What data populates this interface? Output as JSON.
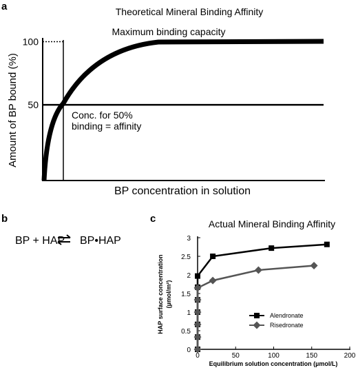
{
  "panel_a": {
    "label": "a",
    "title": "Theoretical Mineral Binding Affinity",
    "y_label": "Amount of BP bound (%)",
    "x_label": "BP concentration in solution",
    "ylim": [
      -10,
      103
    ],
    "yticks": [
      50,
      100
    ],
    "annotation_max": "Maximum binding capacity",
    "annotation_half": [
      "Conc. for 50%",
      "binding = affinity"
    ]
  },
  "panel_b": {
    "label": "b",
    "reactants": "BP + HAP",
    "product": "BP•HAP"
  },
  "chart_data": {
    "type": "line",
    "label": "c",
    "title": "Actual Mineral Binding Affinity",
    "x_label": "Equilibrium solution concentration (µmol/L)",
    "y_label": [
      "HAP surface concentration",
      "(µmol/m²)"
    ],
    "xlim": [
      0,
      200
    ],
    "xticks": [
      0,
      50,
      100,
      150,
      200
    ],
    "ylim": [
      0,
      3
    ],
    "yticks": [
      0,
      0.5,
      1,
      1.5,
      2,
      2.5,
      3
    ],
    "series": [
      {
        "name": "Alendronate",
        "color": "#000000",
        "marker": "square",
        "x": [
          0,
          0,
          0,
          0,
          0,
          0,
          0,
          20,
          97,
          170
        ],
        "values": [
          0,
          0.33,
          0.67,
          1,
          1.33,
          1.67,
          1.97,
          2.5,
          2.72,
          2.82
        ]
      },
      {
        "name": "Risedronate",
        "color": "#555555",
        "marker": "diamond",
        "x": [
          0,
          0,
          0,
          0,
          0,
          0,
          20,
          80,
          153
        ],
        "values": [
          0,
          0.33,
          0.67,
          1,
          1.33,
          1.65,
          1.85,
          2.13,
          2.25
        ]
      }
    ]
  }
}
